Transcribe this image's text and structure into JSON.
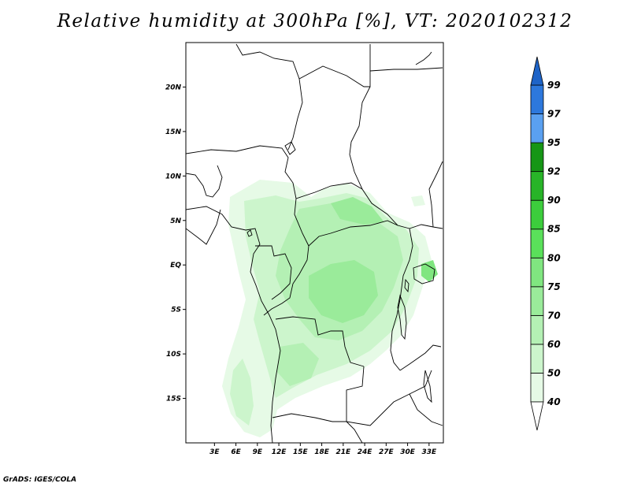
{
  "title": "Relative humidity at 300hPa [%], VT: 2020102312",
  "credit": "GrADS: IGES/COLA",
  "map": {
    "lon_range": [
      -1,
      35
    ],
    "lat_range": [
      -20,
      25
    ],
    "lat_ticks": [
      {
        "value": 20,
        "label": "20N"
      },
      {
        "value": 15,
        "label": "15N"
      },
      {
        "value": 10,
        "label": "10N"
      },
      {
        "value": 5,
        "label": "5N"
      },
      {
        "value": 0,
        "label": "EQ"
      },
      {
        "value": -5,
        "label": "5S"
      },
      {
        "value": -10,
        "label": "10S"
      },
      {
        "value": -15,
        "label": "15S"
      }
    ],
    "lon_ticks": [
      {
        "value": 3,
        "label": "3E"
      },
      {
        "value": 6,
        "label": "6E"
      },
      {
        "value": 9,
        "label": "9E"
      },
      {
        "value": 12,
        "label": "12E"
      },
      {
        "value": 15,
        "label": "15E"
      },
      {
        "value": 18,
        "label": "18E"
      },
      {
        "value": 21,
        "label": "21E"
      },
      {
        "value": 24,
        "label": "24E"
      },
      {
        "value": 27,
        "label": "27E"
      },
      {
        "value": 30,
        "label": "30E"
      },
      {
        "value": 33,
        "label": "33E"
      }
    ]
  },
  "colorbar": {
    "levels": [
      {
        "label": "40",
        "color": "#e6fae6"
      },
      {
        "label": "50",
        "color": "#ccf5cc"
      },
      {
        "label": "60",
        "color": "#b4f0b4"
      },
      {
        "label": "70",
        "color": "#9aeb9a"
      },
      {
        "label": "75",
        "color": "#80e680"
      },
      {
        "label": "80",
        "color": "#5ae05a"
      },
      {
        "label": "85",
        "color": "#3ccd3c"
      },
      {
        "label": "90",
        "color": "#28b428"
      },
      {
        "label": "92",
        "color": "#169616"
      },
      {
        "label": "95",
        "color": "#5aa0f0"
      },
      {
        "label": "97",
        "color": "#2d78dc"
      },
      {
        "label": "99",
        "color": "#1e64c8"
      }
    ],
    "bottom_color": "#ffffff",
    "top_color": "#1e64c8"
  }
}
